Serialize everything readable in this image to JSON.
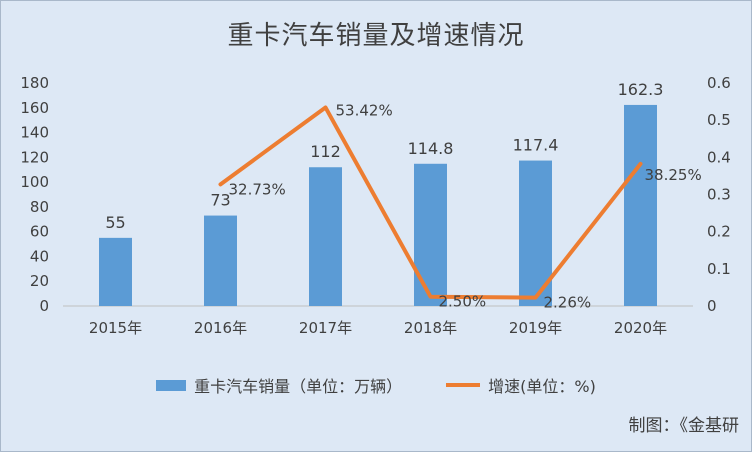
{
  "chart_data": {
    "type": "bar",
    "title": "重卡汽车销量及增速情况",
    "categories": [
      "2015年",
      "2016年",
      "2017年",
      "2018年",
      "2019年",
      "2020年"
    ],
    "y_left": {
      "ylim": [
        0,
        180
      ],
      "ticks": [
        "0",
        "20",
        "40",
        "60",
        "80",
        "100",
        "120",
        "140",
        "160",
        "180"
      ]
    },
    "y_right": {
      "ylim": [
        0,
        0.6
      ],
      "ticks": [
        "0",
        "0.1",
        "0.2",
        "0.3",
        "0.4",
        "0.5",
        "0.6"
      ]
    },
    "series": [
      {
        "name": "重卡汽车销量（单位：万辆）",
        "type": "bar",
        "axis": "left",
        "color": "#5b9bd5",
        "values": [
          55,
          73,
          112,
          114.8,
          117.4,
          162.3
        ],
        "labels": [
          "55",
          "73",
          "112",
          "114.8",
          "117.4",
          "162.3"
        ]
      },
      {
        "name": "增速(单位：%)",
        "type": "line",
        "axis": "right",
        "color": "#ed7d31",
        "values": [
          null,
          0.3273,
          0.5342,
          0.025,
          0.0226,
          0.3825
        ],
        "labels": [
          "",
          "32.73%",
          "53.42%",
          "2.50%",
          "2.26%",
          "38.25%"
        ]
      }
    ],
    "grid": false,
    "legend": "bottom"
  },
  "source": "制图：《金基研"
}
